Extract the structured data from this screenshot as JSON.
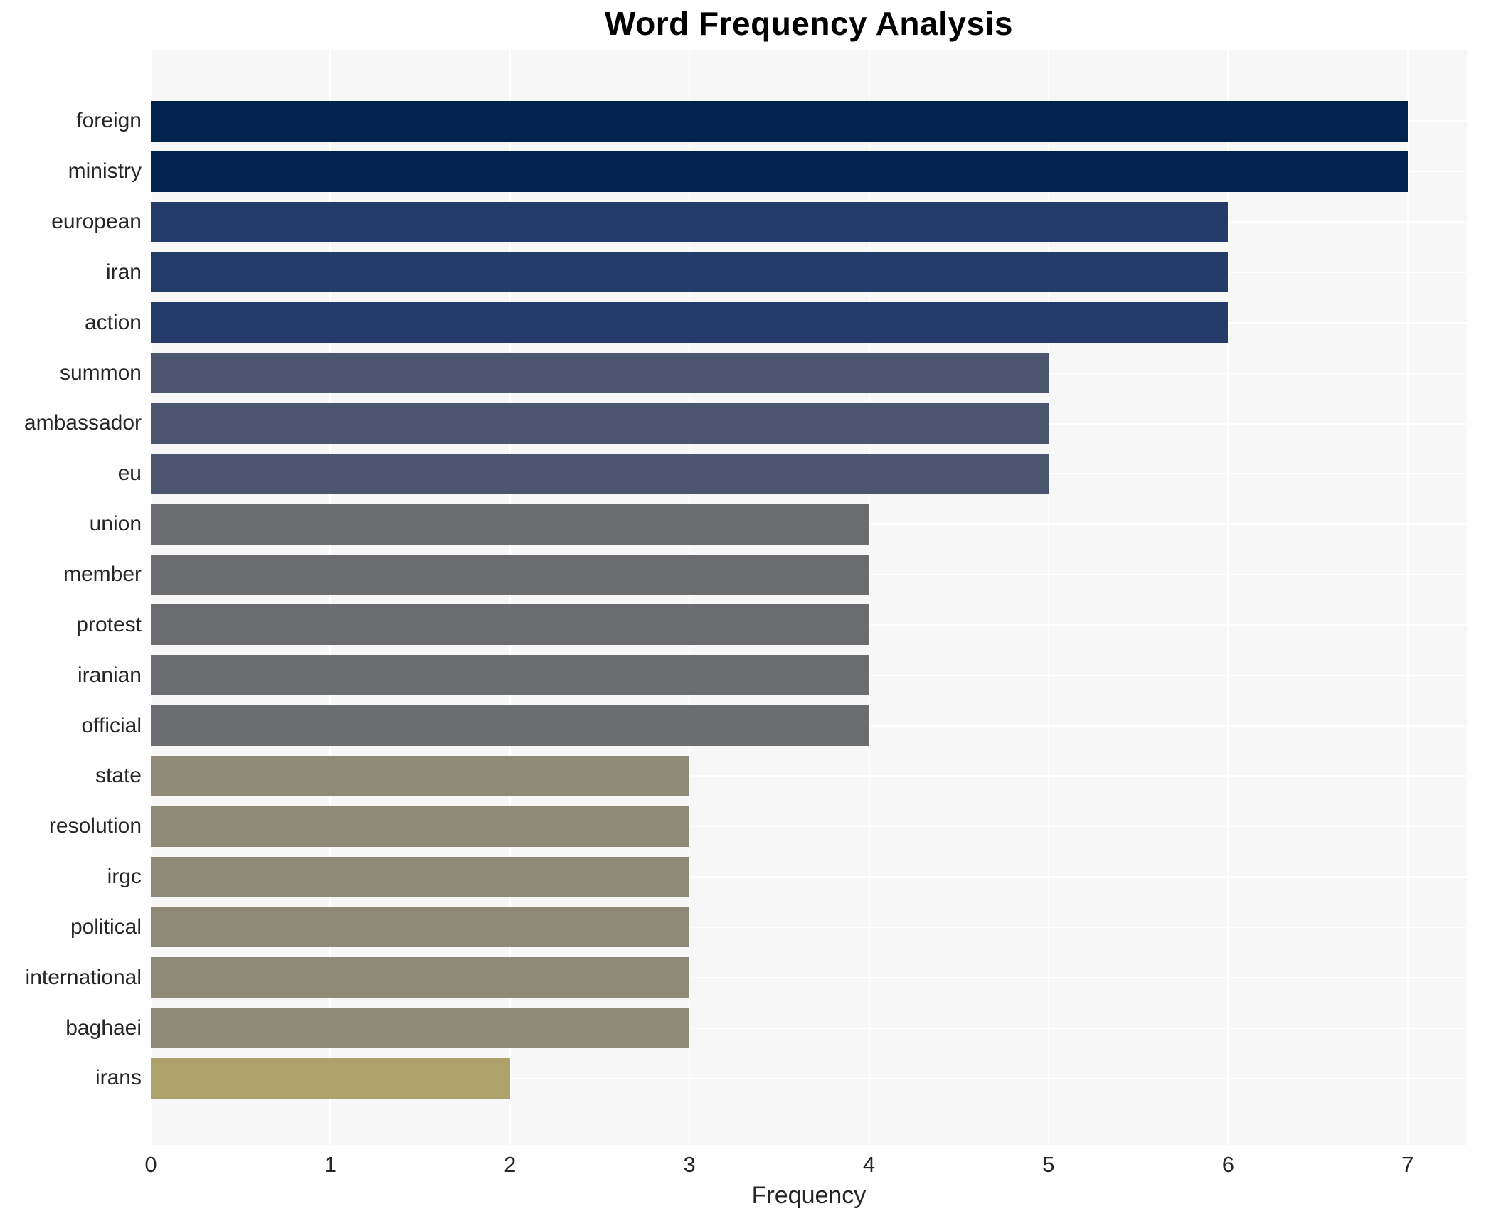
{
  "chart_data": {
    "type": "bar",
    "orientation": "horizontal",
    "title": "Word Frequency Analysis",
    "xlabel": "Frequency",
    "ylabel": "",
    "categories": [
      "foreign",
      "ministry",
      "european",
      "iran",
      "action",
      "summon",
      "ambassador",
      "eu",
      "union",
      "member",
      "protest",
      "iranian",
      "official",
      "state",
      "resolution",
      "irgc",
      "political",
      "international",
      "baghaei",
      "irans"
    ],
    "values": [
      7,
      7,
      6,
      6,
      6,
      5,
      5,
      5,
      4,
      4,
      4,
      4,
      4,
      3,
      3,
      3,
      3,
      3,
      3,
      2
    ],
    "bar_colors": [
      "#01234e",
      "#01234e",
      "#253b69",
      "#253b69",
      "#253b69",
      "#4c556e",
      "#4c556e",
      "#4c556e",
      "#6c6d70",
      "#6c6d70",
      "#6c6d70",
      "#6c6d70",
      "#6c6d70",
      "#8f8a78",
      "#8f8a78",
      "#8f8a78",
      "#8f8a78",
      "#8f8a78",
      "#8f8a78",
      "#ada26c"
    ],
    "xticks": [
      "0",
      "1",
      "2",
      "3",
      "4",
      "5",
      "6",
      "7"
    ],
    "xlim": [
      0,
      7.33
    ],
    "grid": "on",
    "legend_position": "none",
    "plot_background": "#f7f7f8",
    "grid_color": "#ffffff",
    "title_color": "#000000",
    "tick_color": "#262626"
  }
}
